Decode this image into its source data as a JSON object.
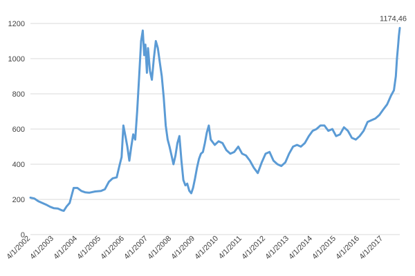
{
  "chart_data": {
    "type": "line",
    "title": "",
    "xlabel": "",
    "ylabel": "",
    "ylim": [
      0,
      1200
    ],
    "y_ticks": [
      "0",
      "200",
      "400",
      "600",
      "800",
      "1000",
      "1200"
    ],
    "x_ticks": [
      "4/1/2002",
      "4/1/2003",
      "4/1/2004",
      "4/1/2005",
      "4/1/2006",
      "4/1/2007",
      "4/1/2008",
      "4/1/2009",
      "4/1/2010",
      "4/1/2011",
      "4/1/2012",
      "4/1/2013",
      "4/1/2014",
      "4/1/2015",
      "4/1/2016",
      "4/1/2017"
    ],
    "x_range": [
      "2002-04-01",
      "2017-12-15"
    ],
    "grid": true,
    "legend": "none",
    "line_color": "#5b9bd5",
    "grid_color": "#d9d9d9",
    "series": [
      {
        "points": [
          [
            "2002-04-01",
            210
          ],
          [
            "2002-06-01",
            205
          ],
          [
            "2002-08-01",
            190
          ],
          [
            "2002-10-01",
            180
          ],
          [
            "2002-12-01",
            170
          ],
          [
            "2003-02-01",
            158
          ],
          [
            "2003-04-01",
            150
          ],
          [
            "2003-06-01",
            148
          ],
          [
            "2003-08-01",
            138
          ],
          [
            "2003-09-01",
            135
          ],
          [
            "2003-10-15",
            160
          ],
          [
            "2003-12-01",
            180
          ],
          [
            "2004-02-01",
            265
          ],
          [
            "2004-04-01",
            265
          ],
          [
            "2004-06-01",
            248
          ],
          [
            "2004-08-01",
            240
          ],
          [
            "2004-10-01",
            238
          ],
          [
            "2005-01-01",
            245
          ],
          [
            "2005-04-01",
            248
          ],
          [
            "2005-06-01",
            258
          ],
          [
            "2005-08-01",
            300
          ],
          [
            "2005-10-01",
            320
          ],
          [
            "2005-12-01",
            325
          ],
          [
            "2006-01-15",
            395
          ],
          [
            "2006-02-15",
            440
          ],
          [
            "2006-03-15",
            620
          ],
          [
            "2006-04-15",
            560
          ],
          [
            "2006-05-15",
            500
          ],
          [
            "2006-06-15",
            420
          ],
          [
            "2006-07-15",
            500
          ],
          [
            "2006-08-15",
            570
          ],
          [
            "2006-09-15",
            540
          ],
          [
            "2006-10-15",
            700
          ],
          [
            "2006-11-15",
            900
          ],
          [
            "2006-12-15",
            1100
          ],
          [
            "2007-01-10",
            1160
          ],
          [
            "2007-02-01",
            1020
          ],
          [
            "2007-02-20",
            1080
          ],
          [
            "2007-03-15",
            920
          ],
          [
            "2007-04-01",
            1060
          ],
          [
            "2007-05-01",
            930
          ],
          [
            "2007-06-01",
            880
          ],
          [
            "2007-07-01",
            1000
          ],
          [
            "2007-08-01",
            1100
          ],
          [
            "2007-09-01",
            1060
          ],
          [
            "2007-10-01",
            980
          ],
          [
            "2007-11-01",
            900
          ],
          [
            "2007-12-01",
            780
          ],
          [
            "2008-01-01",
            620
          ],
          [
            "2008-02-01",
            540
          ],
          [
            "2008-03-01",
            500
          ],
          [
            "2008-04-01",
            450
          ],
          [
            "2008-05-01",
            400
          ],
          [
            "2008-06-01",
            450
          ],
          [
            "2008-07-01",
            520
          ],
          [
            "2008-08-01",
            560
          ],
          [
            "2008-09-01",
            420
          ],
          [
            "2008-10-01",
            310
          ],
          [
            "2008-11-01",
            280
          ],
          [
            "2008-12-01",
            290
          ],
          [
            "2009-01-01",
            250
          ],
          [
            "2009-02-01",
            235
          ],
          [
            "2009-03-01",
            265
          ],
          [
            "2009-04-01",
            320
          ],
          [
            "2009-05-01",
            380
          ],
          [
            "2009-06-01",
            430
          ],
          [
            "2009-07-01",
            460
          ],
          [
            "2009-08-01",
            470
          ],
          [
            "2009-09-01",
            520
          ],
          [
            "2009-10-01",
            580
          ],
          [
            "2009-11-01",
            620
          ],
          [
            "2009-12-01",
            540
          ],
          [
            "2010-02-01",
            510
          ],
          [
            "2010-04-01",
            530
          ],
          [
            "2010-06-01",
            520
          ],
          [
            "2010-08-01",
            480
          ],
          [
            "2010-10-01",
            460
          ],
          [
            "2010-12-01",
            470
          ],
          [
            "2011-02-01",
            500
          ],
          [
            "2011-04-01",
            460
          ],
          [
            "2011-06-01",
            450
          ],
          [
            "2011-08-01",
            420
          ],
          [
            "2011-10-01",
            380
          ],
          [
            "2011-12-01",
            350
          ],
          [
            "2012-02-01",
            410
          ],
          [
            "2012-04-01",
            460
          ],
          [
            "2012-06-01",
            470
          ],
          [
            "2012-08-01",
            420
          ],
          [
            "2012-10-01",
            400
          ],
          [
            "2012-12-01",
            390
          ],
          [
            "2013-02-01",
            410
          ],
          [
            "2013-04-01",
            460
          ],
          [
            "2013-06-01",
            500
          ],
          [
            "2013-08-01",
            510
          ],
          [
            "2013-10-01",
            500
          ],
          [
            "2013-12-01",
            520
          ],
          [
            "2014-02-01",
            560
          ],
          [
            "2014-04-01",
            590
          ],
          [
            "2014-06-01",
            600
          ],
          [
            "2014-08-01",
            620
          ],
          [
            "2014-10-01",
            620
          ],
          [
            "2014-12-01",
            590
          ],
          [
            "2015-02-01",
            600
          ],
          [
            "2015-04-01",
            560
          ],
          [
            "2015-06-01",
            570
          ],
          [
            "2015-08-01",
            610
          ],
          [
            "2015-10-01",
            590
          ],
          [
            "2015-12-01",
            550
          ],
          [
            "2016-02-01",
            540
          ],
          [
            "2016-04-01",
            560
          ],
          [
            "2016-06-01",
            590
          ],
          [
            "2016-08-01",
            640
          ],
          [
            "2016-10-01",
            650
          ],
          [
            "2016-12-01",
            660
          ],
          [
            "2017-02-01",
            680
          ],
          [
            "2017-04-01",
            710
          ],
          [
            "2017-06-01",
            740
          ],
          [
            "2017-08-01",
            790
          ],
          [
            "2017-09-15",
            820
          ],
          [
            "2017-10-15",
            900
          ],
          [
            "2017-11-01",
            1000
          ],
          [
            "2017-11-20",
            1080
          ],
          [
            "2017-12-01",
            1130
          ],
          [
            "2017-12-15",
            1174.46
          ]
        ]
      }
    ],
    "annotations": [
      {
        "x": "2017-12-15",
        "y": 1174.46,
        "text": "1174,46"
      }
    ]
  }
}
